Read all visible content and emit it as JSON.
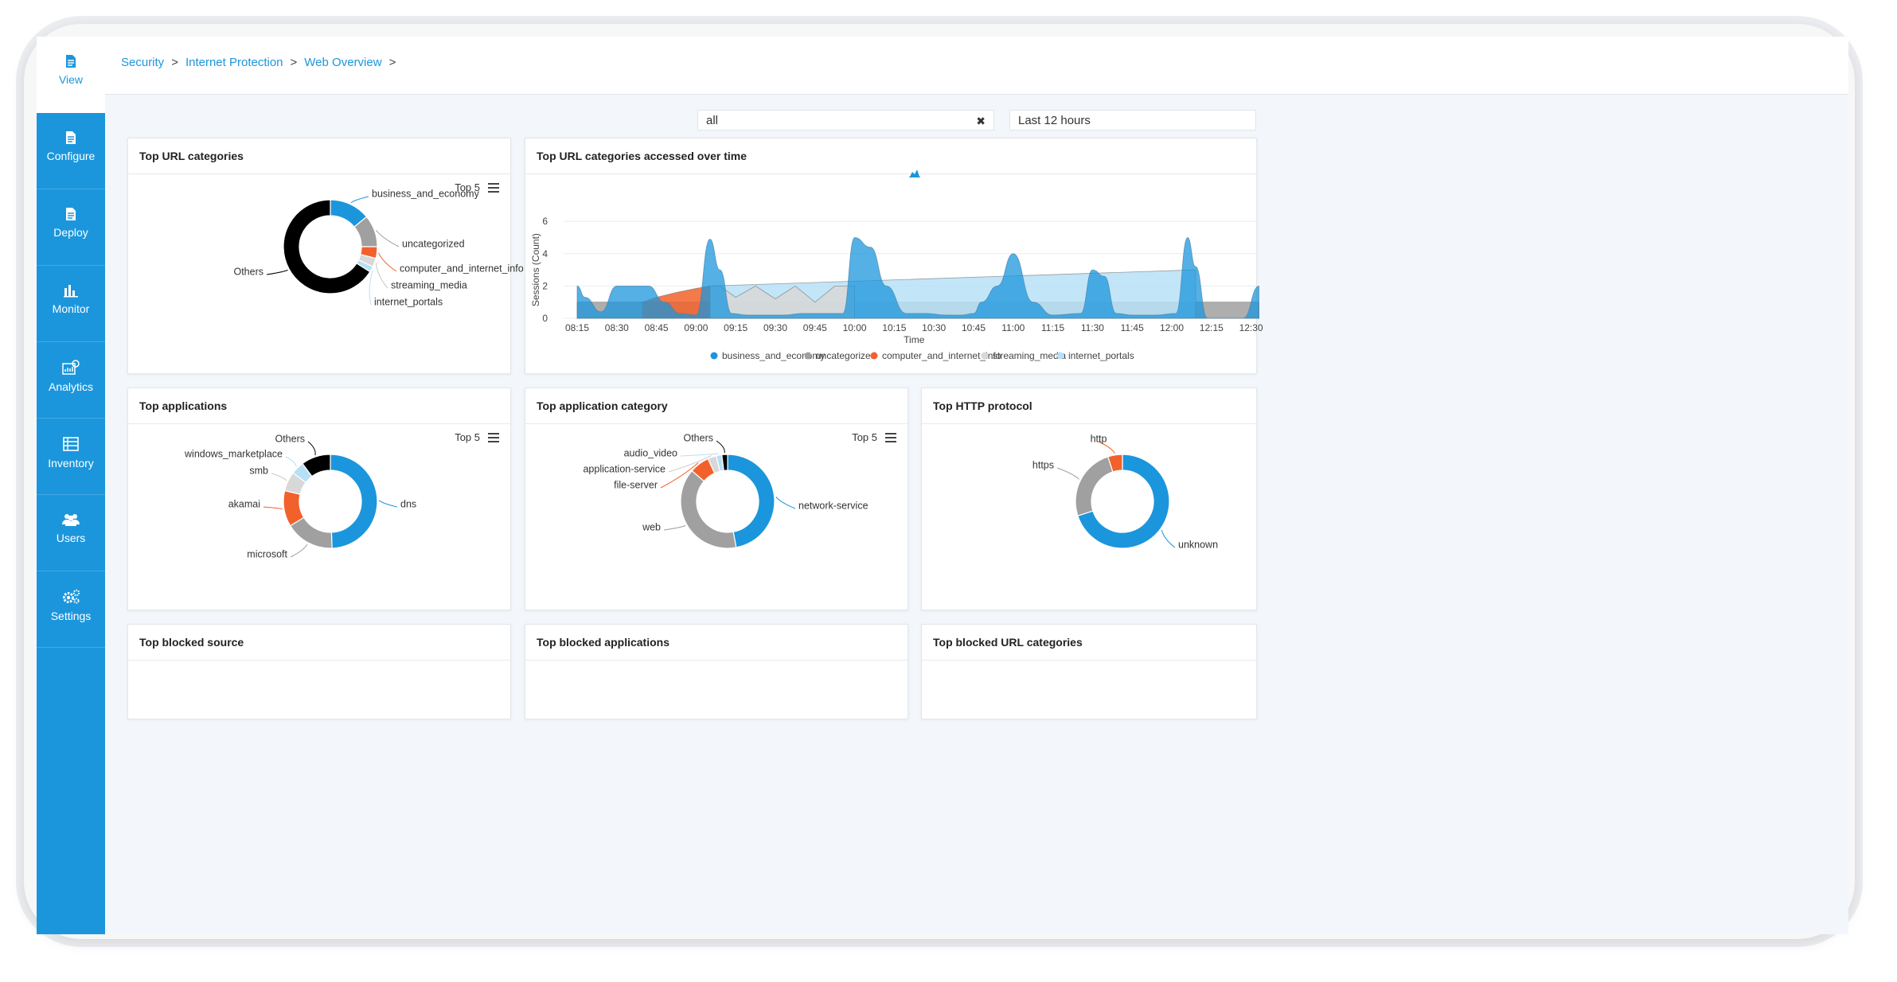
{
  "sidebar": {
    "items": [
      {
        "label": "View",
        "icon": "document-icon",
        "active": true
      },
      {
        "label": "Configure",
        "icon": "document-icon"
      },
      {
        "label": "Deploy",
        "icon": "document-icon"
      },
      {
        "label": "Monitor",
        "icon": "bar-chart-icon"
      },
      {
        "label": "Analytics",
        "icon": "analytics-icon"
      },
      {
        "label": "Inventory",
        "icon": "inventory-icon"
      },
      {
        "label": "Users",
        "icon": "users-icon"
      },
      {
        "label": "Settings",
        "icon": "gears-icon"
      }
    ]
  },
  "breadcrumb": {
    "items": [
      "Security",
      "Internet Protection",
      "Web Overview"
    ],
    "separator": ">"
  },
  "filters": {
    "search_value": "all",
    "time_range": "Last 12 hours"
  },
  "cards": {
    "top_url_categories": {
      "title": "Top URL categories",
      "top_label": "Top 5"
    },
    "url_over_time": {
      "title": "Top URL categories accessed over time"
    },
    "top_applications": {
      "title": "Top applications",
      "top_label": "Top 5"
    },
    "top_app_category": {
      "title": "Top application category",
      "top_label": "Top 5"
    },
    "top_http_protocol": {
      "title": "Top HTTP protocol"
    },
    "top_blocked_source": {
      "title": "Top blocked source"
    },
    "top_blocked_applications": {
      "title": "Top blocked applications"
    },
    "top_blocked_url_categories": {
      "title": "Top blocked URL categories"
    }
  },
  "colors": {
    "blue": "#1b96dc",
    "grey": "#a0a0a0",
    "orange": "#f2612b",
    "light_grey": "#d8d8d8",
    "light_blue": "#b7e0f7",
    "black": "#000000",
    "sidebar": "#1b96dc"
  },
  "chart_data": [
    {
      "id": "top_url_categories",
      "type": "pie",
      "donut": true,
      "title": "Top URL categories",
      "labels": [
        "business_and_economy",
        "uncategorized",
        "computer_and_internet_info",
        "streaming_media",
        "internet_portals",
        "Others"
      ],
      "values": [
        14,
        11,
        4,
        3,
        2,
        66
      ],
      "colors": [
        "#1b96dc",
        "#a0a0a0",
        "#f2612b",
        "#d8d8d8",
        "#b7e0f7",
        "#000000"
      ]
    },
    {
      "id": "url_over_time",
      "type": "area",
      "title": "Top URL categories accessed over time",
      "xlabel": "Time",
      "ylabel": "Sessions (Count)",
      "ylim": [
        0,
        6.5
      ],
      "yticks": [
        0,
        2,
        4,
        6
      ],
      "xticks": [
        "08:15",
        "08:30",
        "08:45",
        "09:00",
        "09:15",
        "09:30",
        "09:45",
        "10:00",
        "10:15",
        "10:30",
        "10:45",
        "11:00",
        "11:15",
        "11:30",
        "11:45",
        "12:00",
        "12:15",
        "12:30"
      ],
      "legend_position": "bottom",
      "series": [
        {
          "name": "business_and_economy",
          "color": "#1b96dc",
          "x": [
            0,
            0.2,
            0.6,
            1.0,
            1.4,
            1.8,
            2.2,
            2.6,
            3.0,
            3.35,
            3.6,
            3.9,
            4.3,
            4.7,
            5.2,
            5.7,
            6.2,
            6.7,
            7.0,
            7.4,
            7.8,
            8.3,
            8.8,
            9.3,
            9.7,
            10.0,
            10.2,
            10.6,
            11.0,
            11.5,
            12.0,
            12.7,
            13.0,
            13.3,
            13.6,
            14.0,
            14.6,
            15.1,
            15.4,
            15.6,
            15.9,
            16.3,
            16.8,
            17.2
          ],
          "y": [
            2,
            1.3,
            0.4,
            2,
            2,
            2,
            1,
            0.3,
            0.2,
            4.9,
            3,
            0.3,
            0.2,
            0.2,
            0.2,
            0.3,
            0.3,
            0.3,
            5.0,
            4.4,
            2.0,
            0.3,
            0.3,
            0.2,
            0.2,
            0.3,
            1.0,
            2.0,
            4.0,
            1.0,
            0.2,
            0.3,
            3.0,
            2.6,
            0.3,
            0.2,
            0.2,
            0.3,
            5.0,
            3.2,
            0,
            0,
            0,
            2.0
          ]
        },
        {
          "name": "uncategorized",
          "color": "#a0a0a0",
          "x": [
            0,
            17.2
          ],
          "y": [
            1,
            1
          ]
        },
        {
          "name": "computer_and_internet_info",
          "color": "#f2612b",
          "x": [
            1.65,
            2.0,
            2.5,
            3.0,
            3.35,
            3.35
          ],
          "y": [
            1,
            1.3,
            1.6,
            1.85,
            2.0,
            0
          ]
        },
        {
          "name": "streaming_media",
          "color": "#d8d8d8",
          "x": [
            3.35,
            3.6,
            4.0,
            4.5,
            5.0,
            5.5,
            6.0,
            6.5,
            7.0
          ],
          "y": [
            2,
            2,
            1.3,
            2.0,
            1.2,
            2.0,
            1.0,
            2.0,
            2.0
          ]
        },
        {
          "name": "internet_portals",
          "color": "#b7e0f7",
          "x": [
            3.35,
            15.6
          ],
          "y": [
            2.0,
            3.0
          ]
        }
      ]
    },
    {
      "id": "top_applications",
      "type": "pie",
      "donut": true,
      "title": "Top applications",
      "labels": [
        "dns",
        "microsoft",
        "akamai",
        "smb",
        "windows_marketplace",
        "Others"
      ],
      "values": [
        44,
        15,
        11,
        6,
        4,
        9
      ],
      "colors": [
        "#1b96dc",
        "#a0a0a0",
        "#f2612b",
        "#d8d8d8",
        "#b7e0f7",
        "#000000"
      ]
    },
    {
      "id": "top_app_category",
      "type": "pie",
      "donut": true,
      "title": "Top application category",
      "labels": [
        "network-service",
        "web",
        "file-server",
        "application-service",
        "audio_video",
        "Others"
      ],
      "values": [
        48,
        40,
        7,
        3,
        2,
        2
      ],
      "colors": [
        "#1b96dc",
        "#a0a0a0",
        "#f2612b",
        "#d8d8d8",
        "#b7e0f7",
        "#000000"
      ]
    },
    {
      "id": "top_http_protocol",
      "type": "pie",
      "donut": true,
      "title": "Top HTTP protocol",
      "labels": [
        "unknown",
        "https",
        "http"
      ],
      "values": [
        70,
        25,
        5
      ],
      "colors": [
        "#1b96dc",
        "#a0a0a0",
        "#f2612b"
      ]
    }
  ]
}
